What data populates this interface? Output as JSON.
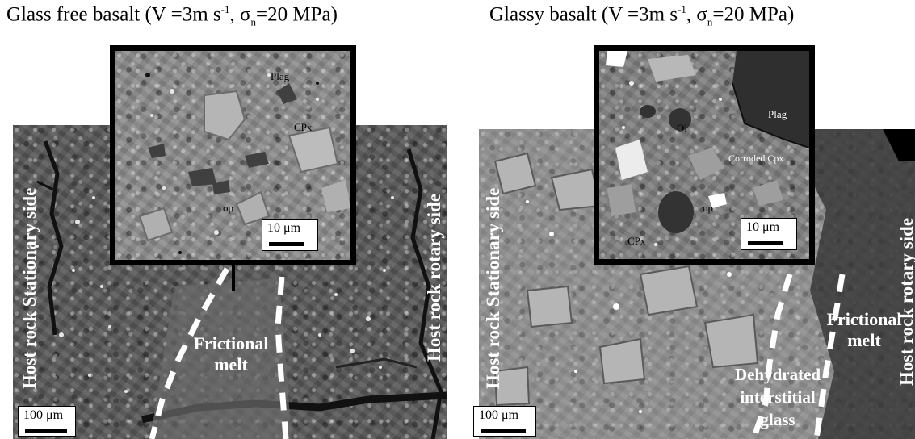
{
  "titles": {
    "left": {
      "prefix": "Glass free basalt (V =3m s",
      "sup": "-1",
      "mid": ", σ",
      "sub": "n",
      "suffix": "=20 MPa)"
    },
    "right": {
      "prefix": "Glassy basalt (V =3m s",
      "sup": "-1",
      "mid": ", σ",
      "sub": "n",
      "suffix": "=20 MPa)"
    }
  },
  "left_panel": {
    "side_left": "Host rock Stationary side",
    "side_right": "Host rock rotary side",
    "melt_line1": "Frictional",
    "melt_line2": "melt",
    "scale": "100 μm"
  },
  "left_inset": {
    "labels": {
      "plag": "Plag",
      "cpx": "CPx",
      "op": "op"
    },
    "scale": "10 μm"
  },
  "right_panel": {
    "side_left": "Host rock Stationary side",
    "side_right": "Host rock rotary side",
    "melt_line1": "Frictional",
    "melt_line2": "melt",
    "glass_line1": "Dehydrated",
    "glass_line2": "interstitial",
    "glass_line3": "glass",
    "scale": "100 μm"
  },
  "right_inset": {
    "labels": {
      "ol": "Ol",
      "plag": "Plag",
      "corroded": "Corroded Cpx",
      "op": "op",
      "cpx": "CPx"
    },
    "scale": "10 μm"
  }
}
